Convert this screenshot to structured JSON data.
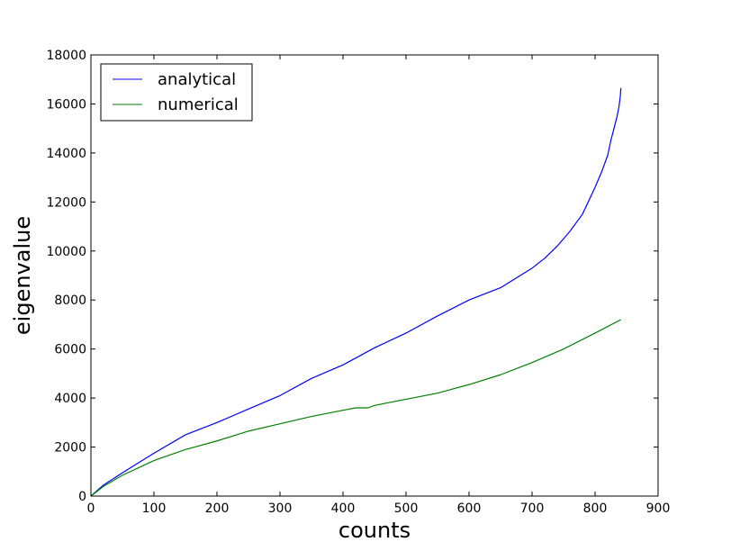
{
  "chart_data": {
    "type": "line",
    "title": "",
    "xlabel": "counts",
    "ylabel": "eigenvalue",
    "xlim": [
      0,
      900
    ],
    "ylim": [
      0,
      18000
    ],
    "xticks": [
      0,
      100,
      200,
      300,
      400,
      500,
      600,
      700,
      800,
      900
    ],
    "yticks": [
      0,
      2000,
      4000,
      6000,
      8000,
      10000,
      12000,
      14000,
      16000,
      18000
    ],
    "grid": false,
    "legend_position": "top-left",
    "series": [
      {
        "name": "analytical",
        "color": "#0000ff",
        "x": [
          0,
          20,
          50,
          100,
          150,
          200,
          250,
          300,
          350,
          400,
          450,
          500,
          550,
          600,
          650,
          700,
          720,
          740,
          760,
          780,
          800,
          810,
          820,
          825,
          830,
          835,
          838,
          840,
          841
        ],
        "y": [
          0,
          450,
          950,
          1750,
          2500,
          3000,
          3550,
          4100,
          4800,
          5350,
          6050,
          6650,
          7350,
          8000,
          8500,
          9300,
          9700,
          10200,
          10800,
          11500,
          12600,
          13200,
          13900,
          14500,
          15000,
          15500,
          15900,
          16300,
          16650
        ]
      },
      {
        "name": "numerical",
        "color": "#008000",
        "x": [
          0,
          20,
          50,
          100,
          150,
          200,
          250,
          300,
          350,
          400,
          420,
          440,
          450,
          500,
          550,
          600,
          650,
          700,
          750,
          800,
          841
        ],
        "y": [
          0,
          400,
          850,
          1450,
          1900,
          2250,
          2650,
          2950,
          3250,
          3500,
          3600,
          3600,
          3700,
          3950,
          4200,
          4550,
          4950,
          5450,
          6000,
          6650,
          7200
        ]
      }
    ]
  }
}
